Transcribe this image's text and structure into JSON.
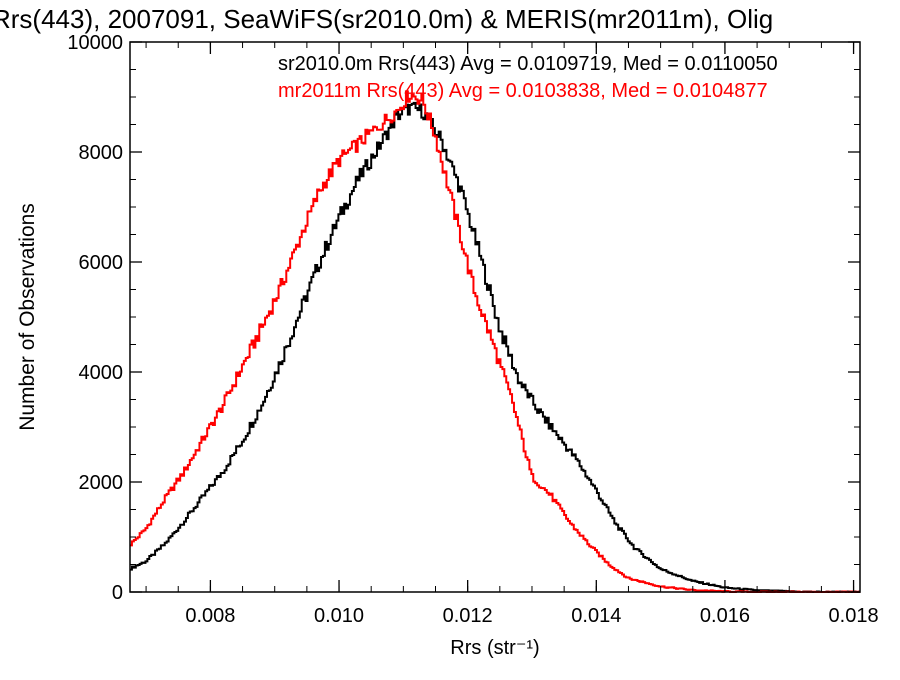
{
  "chart_data": {
    "type": "line",
    "title": "Rrs(443), 2007091, SeaWiFS(sr2010.0m) & MERIS(mr2011m), Olig",
    "xlabel": "Rrs (str⁻¹)",
    "ylabel": "Number of Observations",
    "xlim": [
      0.00675,
      0.0181
    ],
    "ylim": [
      0,
      10000
    ],
    "xticks": [
      0.008,
      0.01,
      0.012,
      0.014,
      0.016,
      0.018
    ],
    "xtick_labels": [
      "0.008",
      "0.010",
      "0.012",
      "0.014",
      "0.016",
      "0.018"
    ],
    "yticks": [
      0,
      2000,
      4000,
      6000,
      8000,
      10000
    ],
    "ytick_labels": [
      "0",
      "2000",
      "4000",
      "6000",
      "8000",
      "10000"
    ],
    "line_style": "histogram-step",
    "series": [
      {
        "name": "sr2010.0m",
        "legend": "sr2010.0m Rrs(443) Avg = 0.0109719, Med = 0.0110050",
        "color": "#000000",
        "x": [
          0.00675,
          0.007,
          0.0073,
          0.0076,
          0.0079,
          0.0082,
          0.0085,
          0.0088,
          0.0091,
          0.0094,
          0.0097,
          0.01,
          0.0103,
          0.0106,
          0.0109,
          0.0111,
          0.0113,
          0.0116,
          0.0119,
          0.0122,
          0.0125,
          0.0128,
          0.0131,
          0.0134,
          0.0137,
          0.014,
          0.0143,
          0.0146,
          0.015,
          0.0155,
          0.016,
          0.0165,
          0.017,
          0.0175,
          0.0181
        ],
        "y": [
          420,
          560,
          880,
          1300,
          1750,
          2200,
          2750,
          3400,
          4200,
          5100,
          6000,
          6800,
          7500,
          8050,
          8650,
          8800,
          8750,
          8200,
          7300,
          6100,
          4800,
          3850,
          3300,
          2850,
          2400,
          1850,
          1250,
          800,
          420,
          200,
          80,
          30,
          10,
          0,
          0
        ]
      },
      {
        "name": "mr2011m",
        "legend": "mr2011m Rrs(443) Avg = 0.0103838, Med = 0.0104877",
        "color": "#ff0000",
        "x": [
          0.00675,
          0.007,
          0.0073,
          0.0076,
          0.0079,
          0.0082,
          0.0085,
          0.0088,
          0.0091,
          0.0094,
          0.0097,
          0.01,
          0.0103,
          0.0106,
          0.0109,
          0.0111,
          0.0113,
          0.0115,
          0.0118,
          0.0121,
          0.0124,
          0.0127,
          0.013,
          0.0133,
          0.0136,
          0.0139,
          0.0142,
          0.0145,
          0.015,
          0.0155,
          0.016,
          0.0165,
          0.017,
          0.0181
        ],
        "y": [
          850,
          1150,
          1700,
          2200,
          2800,
          3400,
          4100,
          4800,
          5550,
          6450,
          7300,
          7850,
          8150,
          8450,
          8750,
          9050,
          8950,
          8300,
          6900,
          5500,
          4500,
          3450,
          2100,
          1750,
          1250,
          850,
          500,
          250,
          100,
          35,
          10,
          0,
          0,
          0
        ]
      }
    ],
    "legend_placement": "top-right",
    "grid": false
  }
}
